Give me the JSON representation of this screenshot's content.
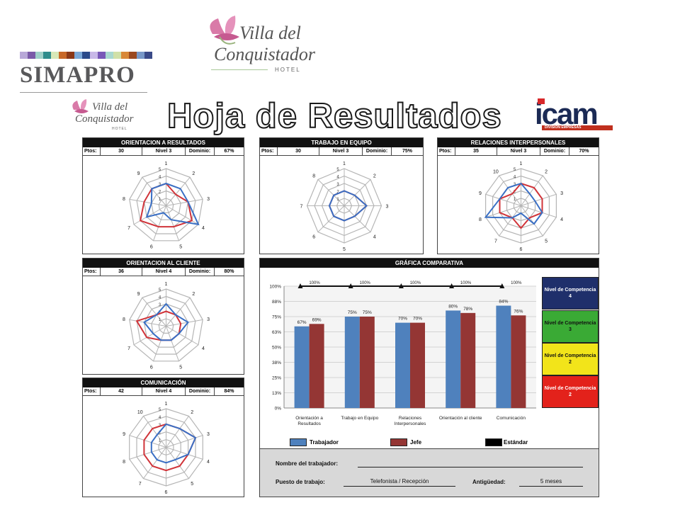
{
  "header": {
    "logo_main": {
      "line1": "Villa del",
      "line2": "Conquistador",
      "line3": "HOTEL"
    },
    "simapro": "SIMAPRO",
    "title": "Hoja de Resultados",
    "icam": {
      "name": "icam",
      "tagline": "DIVISION EMPRESAS"
    },
    "colorbar": [
      "#b8a8d8",
      "#7a5aa8",
      "#9ed0c8",
      "#2e8c8c",
      "#d8e8b8",
      "#c86828",
      "#8a3818",
      "#7aa8d8",
      "#2a4a8a",
      "#c8b8e8",
      "#7858b8",
      "#a8d8d0",
      "#d0e0a8",
      "#d88838",
      "#9a4820",
      "#7898c8",
      "#3a4a88"
    ]
  },
  "panels": [
    {
      "id": "orientacion-resultados",
      "title": "ORIENTACION A RESULTADOS",
      "ptos_label": "Ptos:",
      "ptos": "30",
      "nivel": "Nivel 3",
      "dominio_label": "Dominio:",
      "dominio": "67%",
      "axes": 9,
      "blue": [
        3,
        3,
        3,
        5,
        2,
        1,
        3,
        2,
        3
      ],
      "red": [
        3,
        2,
        3,
        4,
        3,
        3,
        4,
        3,
        3
      ]
    },
    {
      "id": "trabajo-equipo",
      "title": "TRABAJO EN EQUIPO",
      "ptos_label": "Ptos:",
      "ptos": "30",
      "nivel": "Nivel 3",
      "dominio_label": "Dominio:",
      "dominio": "75%",
      "axes": 8,
      "blue": [
        2,
        2,
        3,
        2,
        2,
        2,
        2,
        2
      ],
      "red": [
        2,
        2,
        3,
        2,
        2,
        2,
        2,
        2
      ]
    },
    {
      "id": "relaciones-interpersonales",
      "title": "RELACIONES INTERPERSONALES",
      "ptos_label": "Ptos:",
      "ptos": "35",
      "nivel": "Nivel 3",
      "dominio_label": "Dominio:",
      "dominio": "70%",
      "axes": 10,
      "blue": [
        3,
        2,
        2,
        3,
        3,
        1,
        2,
        5,
        3,
        3
      ],
      "red": [
        3,
        3,
        3,
        3,
        2,
        3,
        2,
        3,
        3,
        2
      ]
    },
    {
      "id": "orientacion-cliente",
      "title": "ORIENTACION AL CLIENTE",
      "ptos_label": "Ptos:",
      "ptos": "36",
      "nivel": "Nivel 4",
      "dominio_label": "Dominio:",
      "dominio": "80%",
      "axes": 9,
      "blue": [
        3,
        2,
        3,
        2,
        2,
        2,
        2,
        3,
        2
      ],
      "red": [
        2,
        2,
        2,
        2,
        2,
        2,
        3,
        4,
        2
      ]
    },
    {
      "id": "comunicacion",
      "title": "COMUNICACIÓN",
      "ptos_label": "Ptos:",
      "ptos": "42",
      "nivel": "Nivel 4",
      "dominio_label": "Dominio:",
      "dominio": "84%",
      "axes": 10,
      "blue": [
        3,
        3,
        4,
        3,
        2,
        2,
        2,
        2,
        2,
        2
      ],
      "red": [
        3,
        3,
        4,
        3,
        3,
        3,
        3,
        3,
        3,
        3
      ]
    }
  ],
  "radar_scale_labels": [
    "1",
    "2",
    "3",
    "4",
    "5"
  ],
  "chart_data": {
    "type": "bar",
    "title": "GRÁFICA COMPARATIVA",
    "categories": [
      "Orientación a Resultados",
      "Trabajo en Equipo",
      "Relaciones Interpersonales",
      "Orientación al cliente",
      "Comunicación"
    ],
    "category_lines": [
      [
        "Orientación a",
        "Resultados"
      ],
      [
        "Trabajo en Equipo"
      ],
      [
        "Relaciones",
        "Interpersonales"
      ],
      [
        "Orientación al cliente"
      ],
      [
        "Comunicación"
      ]
    ],
    "series": [
      {
        "name": "Trabajador",
        "color": "#4f81bd",
        "values": [
          67,
          75,
          70,
          80,
          84
        ],
        "labels": [
          "67%",
          "75%",
          "70%",
          "80%",
          "84%"
        ]
      },
      {
        "name": "Jefe",
        "color": "#943634",
        "values": [
          69,
          75,
          70,
          78,
          76
        ],
        "labels": [
          "69%",
          "75%",
          "70%",
          "78%",
          "76%"
        ]
      },
      {
        "name": "Estándar",
        "color": "#000000",
        "values": [
          100,
          100,
          100,
          100,
          100
        ],
        "labels": [
          "100%",
          "100%",
          "100%",
          "100%",
          "100%"
        ]
      }
    ],
    "yticks": [
      "100%",
      "88%",
      "75%",
      "63%",
      "50%",
      "38%",
      "25%",
      "13%",
      "0%"
    ],
    "ylim": [
      0,
      100
    ]
  },
  "levels": [
    {
      "label": "Nivel de Competencia 4",
      "color": "#1f2f6b",
      "text_color": "#ffffff"
    },
    {
      "label": "Nivel de Competencia 3",
      "color": "#3aaa35",
      "text_color": "#111111"
    },
    {
      "label": "Nivel de Competencia 2",
      "color": "#f2e41a",
      "text_color": "#111111"
    },
    {
      "label": "Nivel de Competencia 2",
      "color": "#e3221b",
      "text_color": "#ffffff"
    }
  ],
  "form": {
    "nombre_label": "Nombre del trabajador:",
    "nombre_value": "",
    "puesto_label": "Puesto de trabajo:",
    "puesto_value": "Telefonista / Recepción",
    "antiguedad_label": "Antigüedad:",
    "antiguedad_value": "5 meses"
  }
}
